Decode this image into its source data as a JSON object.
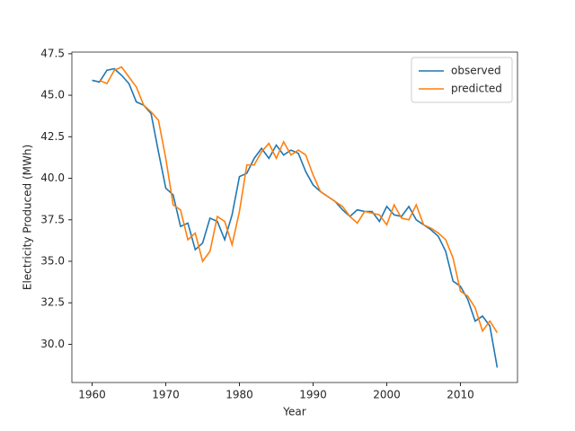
{
  "chart_data": {
    "type": "line",
    "x_label": "Year",
    "y_label": "Electricity Produced (MWh)",
    "x": [
      1960,
      1961,
      1962,
      1963,
      1964,
      1965,
      1966,
      1967,
      1968,
      1969,
      1970,
      1971,
      1972,
      1973,
      1974,
      1975,
      1976,
      1977,
      1978,
      1979,
      1980,
      1981,
      1982,
      1983,
      1984,
      1985,
      1986,
      1987,
      1988,
      1989,
      1990,
      1991,
      1992,
      1993,
      1994,
      1995,
      1996,
      1997,
      1998,
      1999,
      2000,
      2001,
      2002,
      2003,
      2004,
      2005,
      2006,
      2007,
      2008,
      2009,
      2010,
      2011,
      2012,
      2013,
      2014,
      2015
    ],
    "series": [
      {
        "name": "observed",
        "color": "#1f77b4",
        "values": [
          45.9,
          45.8,
          46.5,
          46.6,
          46.2,
          45.7,
          44.6,
          44.4,
          43.9,
          41.6,
          39.4,
          39.0,
          37.1,
          37.3,
          35.7,
          36.1,
          37.6,
          37.4,
          36.3,
          37.8,
          40.1,
          40.3,
          41.2,
          41.8,
          41.2,
          42.0,
          41.4,
          41.7,
          41.5,
          40.4,
          39.6,
          39.2,
          38.9,
          38.6,
          38.1,
          37.7,
          38.1,
          38.0,
          38.0,
          37.4,
          38.3,
          37.8,
          37.7,
          38.3,
          37.5,
          37.2,
          36.9,
          36.5,
          35.6,
          33.8,
          33.5,
          32.7,
          31.4,
          31.7,
          31.1,
          28.6
        ]
      },
      {
        "name": "predicted",
        "color": "#ff7f0e",
        "values": [
          null,
          45.9,
          45.7,
          46.5,
          46.7,
          46.1,
          45.5,
          44.4,
          44.0,
          43.5,
          41.2,
          38.4,
          38.1,
          36.3,
          36.7,
          35.0,
          35.6,
          37.7,
          37.4,
          36.0,
          38.0,
          40.8,
          40.8,
          41.6,
          42.1,
          41.2,
          42.2,
          41.4,
          41.7,
          41.4,
          40.2,
          39.2,
          38.9,
          38.6,
          38.3,
          37.7,
          37.3,
          38.0,
          37.9,
          37.8,
          37.2,
          38.4,
          37.6,
          37.5,
          38.4,
          37.2,
          37.0,
          36.7,
          36.3,
          35.2,
          33.2,
          32.9,
          32.2,
          30.8,
          31.4,
          30.7
        ]
      }
    ],
    "xlim": [
      1957.25,
      2017.75
    ],
    "ylim": [
      27.7,
      47.6
    ],
    "xticks": [
      1960,
      1970,
      1980,
      1990,
      2000,
      2010
    ],
    "yticks": [
      {
        "value": 30,
        "label": "30.0"
      },
      32.5,
      {
        "value": 35,
        "label": "35.0"
      },
      37.5,
      {
        "value": 40,
        "label": "40.0"
      },
      42.5,
      {
        "value": 45,
        "label": "45.0"
      },
      47.5
    ],
    "grid": false,
    "legend": "upper right"
  }
}
